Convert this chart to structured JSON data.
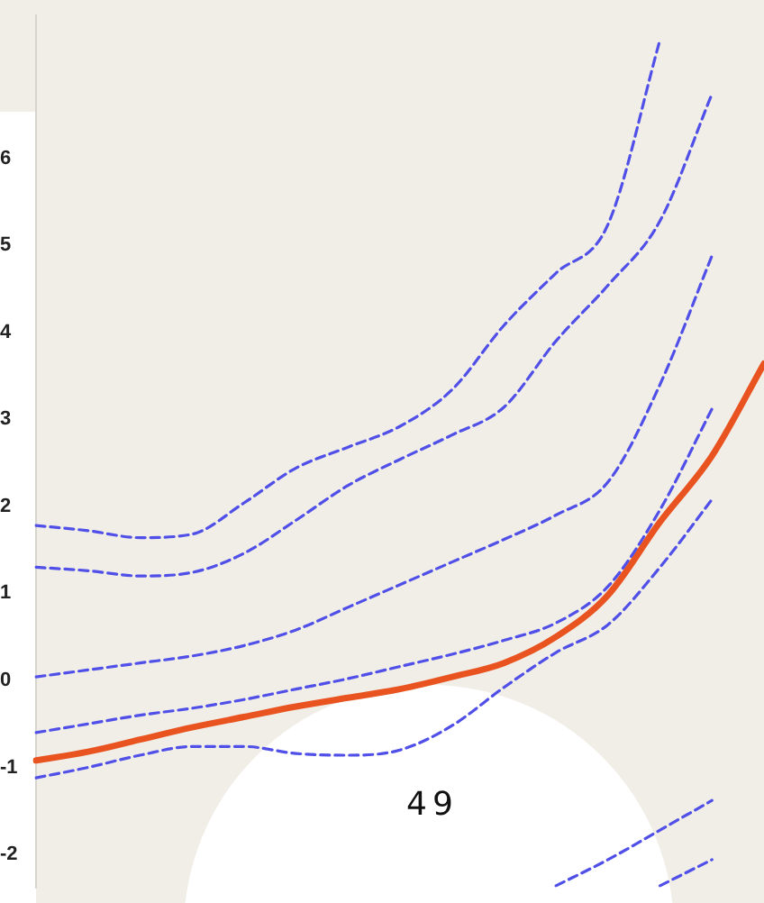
{
  "chart_data": {
    "type": "line",
    "categories": [
      null,
      null,
      null,
      null,
      null,
      null,
      null,
      null,
      null,
      null,
      null,
      null,
      null,
      null,
      null
    ],
    "ylim": [
      -2.38,
      7.64
    ],
    "yticks": [
      -2,
      -1,
      0,
      1,
      2,
      3,
      4,
      5,
      6
    ],
    "grid": false,
    "legend": false,
    "marker": "none",
    "annotations": [
      "49"
    ],
    "series": [
      {
        "color": "#5050e8",
        "line_style": "dashed",
        "values": [
          1.78,
          1.72,
          1.64,
          1.68,
          2.04,
          2.44,
          2.68,
          2.92,
          3.34,
          4.08,
          4.68,
          5.24,
          7.36,
          null,
          null
        ]
      },
      {
        "color": "#5050e8",
        "line_style": "dashed",
        "values": [
          1.3,
          1.26,
          1.2,
          1.24,
          1.46,
          1.84,
          2.24,
          2.54,
          2.82,
          3.14,
          3.9,
          4.54,
          5.28,
          6.74,
          null
        ]
      },
      {
        "color": "#5050e8",
        "line_style": "dashed",
        "values": [
          0.04,
          0.12,
          0.2,
          0.28,
          0.4,
          0.58,
          0.84,
          1.1,
          1.36,
          1.62,
          1.9,
          2.28,
          3.4,
          4.88,
          null
        ]
      },
      {
        "color": "#5050e8",
        "line_style": "dashed",
        "values": [
          -0.6,
          -0.5,
          -0.4,
          -0.32,
          -0.22,
          -0.1,
          0.02,
          0.16,
          0.3,
          0.46,
          0.66,
          1.08,
          1.96,
          3.12,
          null
        ]
      },
      {
        "color": "#5050e8",
        "line_style": "dashed",
        "values": [
          -1.12,
          -1.0,
          -0.86,
          -0.76,
          -0.76,
          -0.84,
          -0.86,
          -0.8,
          -0.52,
          -0.08,
          0.32,
          0.64,
          1.3,
          2.08,
          null
        ]
      },
      {
        "color": "#5050e8",
        "line_style": "dashed",
        "values": [
          null,
          null,
          null,
          null,
          null,
          null,
          null,
          null,
          null,
          null,
          -2.36,
          -2.06,
          -1.72,
          -1.38,
          null
        ]
      },
      {
        "color": "#5050e8",
        "line_style": "dashed",
        "values": [
          null,
          null,
          null,
          null,
          null,
          null,
          null,
          null,
          null,
          null,
          null,
          null,
          -2.36,
          -2.06,
          null
        ]
      },
      {
        "color": "#e8531f",
        "line_style": "solid",
        "values": [
          -0.92,
          -0.82,
          -0.68,
          -0.54,
          -0.42,
          -0.3,
          -0.2,
          -0.1,
          0.04,
          0.2,
          0.5,
          0.98,
          1.82,
          2.58,
          3.64
        ]
      }
    ]
  }
}
